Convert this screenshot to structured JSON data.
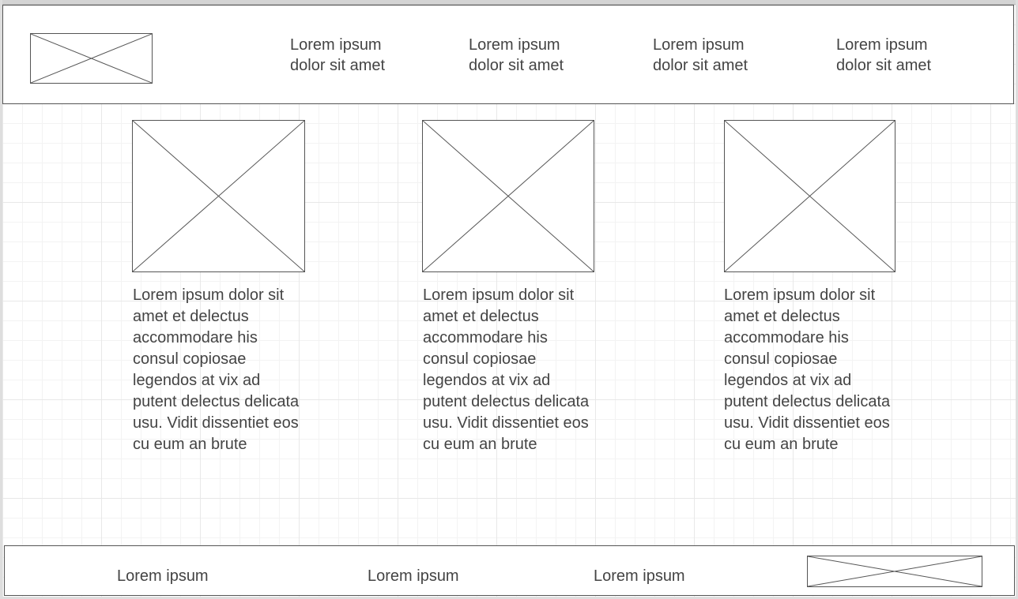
{
  "header": {
    "nav": [
      {
        "label": "Lorem ipsum\ndolor sit amet"
      },
      {
        "label": "Lorem ipsum\ndolor sit amet"
      },
      {
        "label": "Lorem ipsum\ndolor sit amet"
      },
      {
        "label": "Lorem ipsum\ndolor sit amet"
      }
    ]
  },
  "cards": [
    {
      "text": "Lorem ipsum dolor sit amet et delectus accommodare his consul copiosae legendos at vix ad putent delectus delicata usu. Vidit dissentiet eos cu eum an brute"
    },
    {
      "text": "Lorem ipsum dolor sit amet et delectus accommodare his consul copiosae legendos at vix ad putent delectus delicata usu. Vidit dissentiet eos cu eum an brute"
    },
    {
      "text": "Lorem ipsum dolor sit amet et delectus accommodare his consul copiosae legendos at vix ad putent delectus delicata usu. Vidit dissentiet eos cu eum an brute"
    }
  ],
  "footer": {
    "links": [
      {
        "label": "Lorem ipsum"
      },
      {
        "label": "Lorem ipsum"
      },
      {
        "label": "Lorem ipsum"
      }
    ]
  }
}
